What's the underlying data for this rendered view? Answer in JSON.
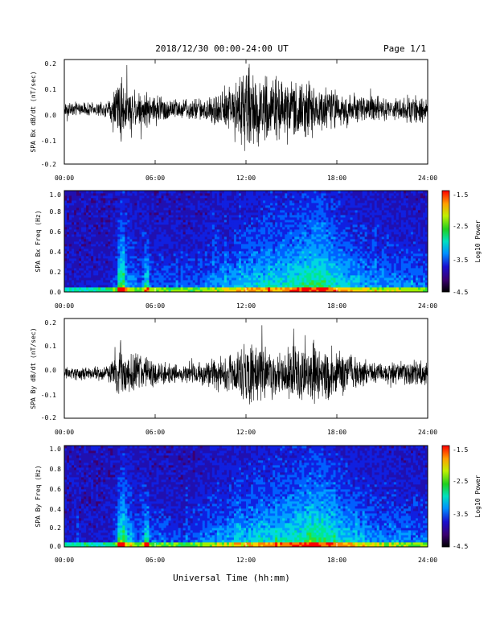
{
  "header": {
    "date_range": "2018/12/30  00:00-24:00 UT",
    "page": "Page 1/1"
  },
  "x_axis": {
    "label": "Universal Time (hh:mm)",
    "ticks": [
      "00:00",
      "06:00",
      "12:00",
      "18:00",
      "24:00"
    ]
  },
  "colorbar": {
    "label": "Log10 Power",
    "ticks": [
      "-1.5",
      "-2.5",
      "-3.5",
      "-4.5"
    ]
  },
  "chart_data": [
    {
      "type": "line",
      "ylabel": "SPA Bx dB/dt (nT/sec)",
      "xlim": [
        0,
        24
      ],
      "ylim": [
        -0.2,
        0.2
      ],
      "yticks": [
        "0.2",
        "0.1",
        "0.0",
        "-0.1",
        "-0.2"
      ],
      "x": [
        0,
        1,
        2,
        3,
        3.7,
        4,
        5,
        6,
        7,
        8,
        9,
        10,
        11,
        12,
        13,
        14,
        15,
        16,
        17,
        18,
        19,
        20,
        21,
        22,
        23,
        24
      ],
      "envelope": [
        0.03,
        0.03,
        0.03,
        0.035,
        0.17,
        0.1,
        0.08,
        0.07,
        0.05,
        0.045,
        0.05,
        0.07,
        0.1,
        0.2,
        0.15,
        0.13,
        0.12,
        0.13,
        0.1,
        0.08,
        0.07,
        0.06,
        0.05,
        0.05,
        0.06,
        0.05
      ]
    },
    {
      "type": "heatmap",
      "ylabel": "SPA Bx Freq (Hz)",
      "xlim": [
        0,
        24
      ],
      "ylim": [
        0,
        1
      ],
      "yticks": [
        "1.0",
        "0.8",
        "0.6",
        "0.4",
        "0.2",
        "0.0"
      ],
      "zlim": [
        -4.5,
        -1.5
      ]
    },
    {
      "type": "line",
      "ylabel": "SPA By dB/dt (nT/sec)",
      "xlim": [
        0,
        24
      ],
      "ylim": [
        -0.2,
        0.2
      ],
      "yticks": [
        "0.2",
        "0.1",
        "0.0",
        "-0.1",
        "-0.2"
      ],
      "x": [
        0,
        1,
        2,
        3,
        3.7,
        4,
        5,
        6,
        7,
        8,
        9,
        10,
        11,
        12,
        13,
        14,
        15,
        16,
        17,
        18,
        19,
        20,
        21,
        22,
        23,
        24
      ],
      "envelope": [
        0.03,
        0.03,
        0.03,
        0.035,
        0.16,
        0.1,
        0.09,
        0.06,
        0.045,
        0.04,
        0.05,
        0.07,
        0.09,
        0.14,
        0.12,
        0.1,
        0.12,
        0.13,
        0.14,
        0.1,
        0.08,
        0.06,
        0.05,
        0.05,
        0.06,
        0.05
      ]
    },
    {
      "type": "heatmap",
      "ylabel": "SPA By Freq (Hz)",
      "xlim": [
        0,
        24
      ],
      "ylim": [
        0,
        1
      ],
      "yticks": [
        "1.0",
        "0.8",
        "0.6",
        "0.4",
        "0.2",
        "0.0"
      ],
      "zlim": [
        -4.5,
        -1.5
      ]
    }
  ]
}
